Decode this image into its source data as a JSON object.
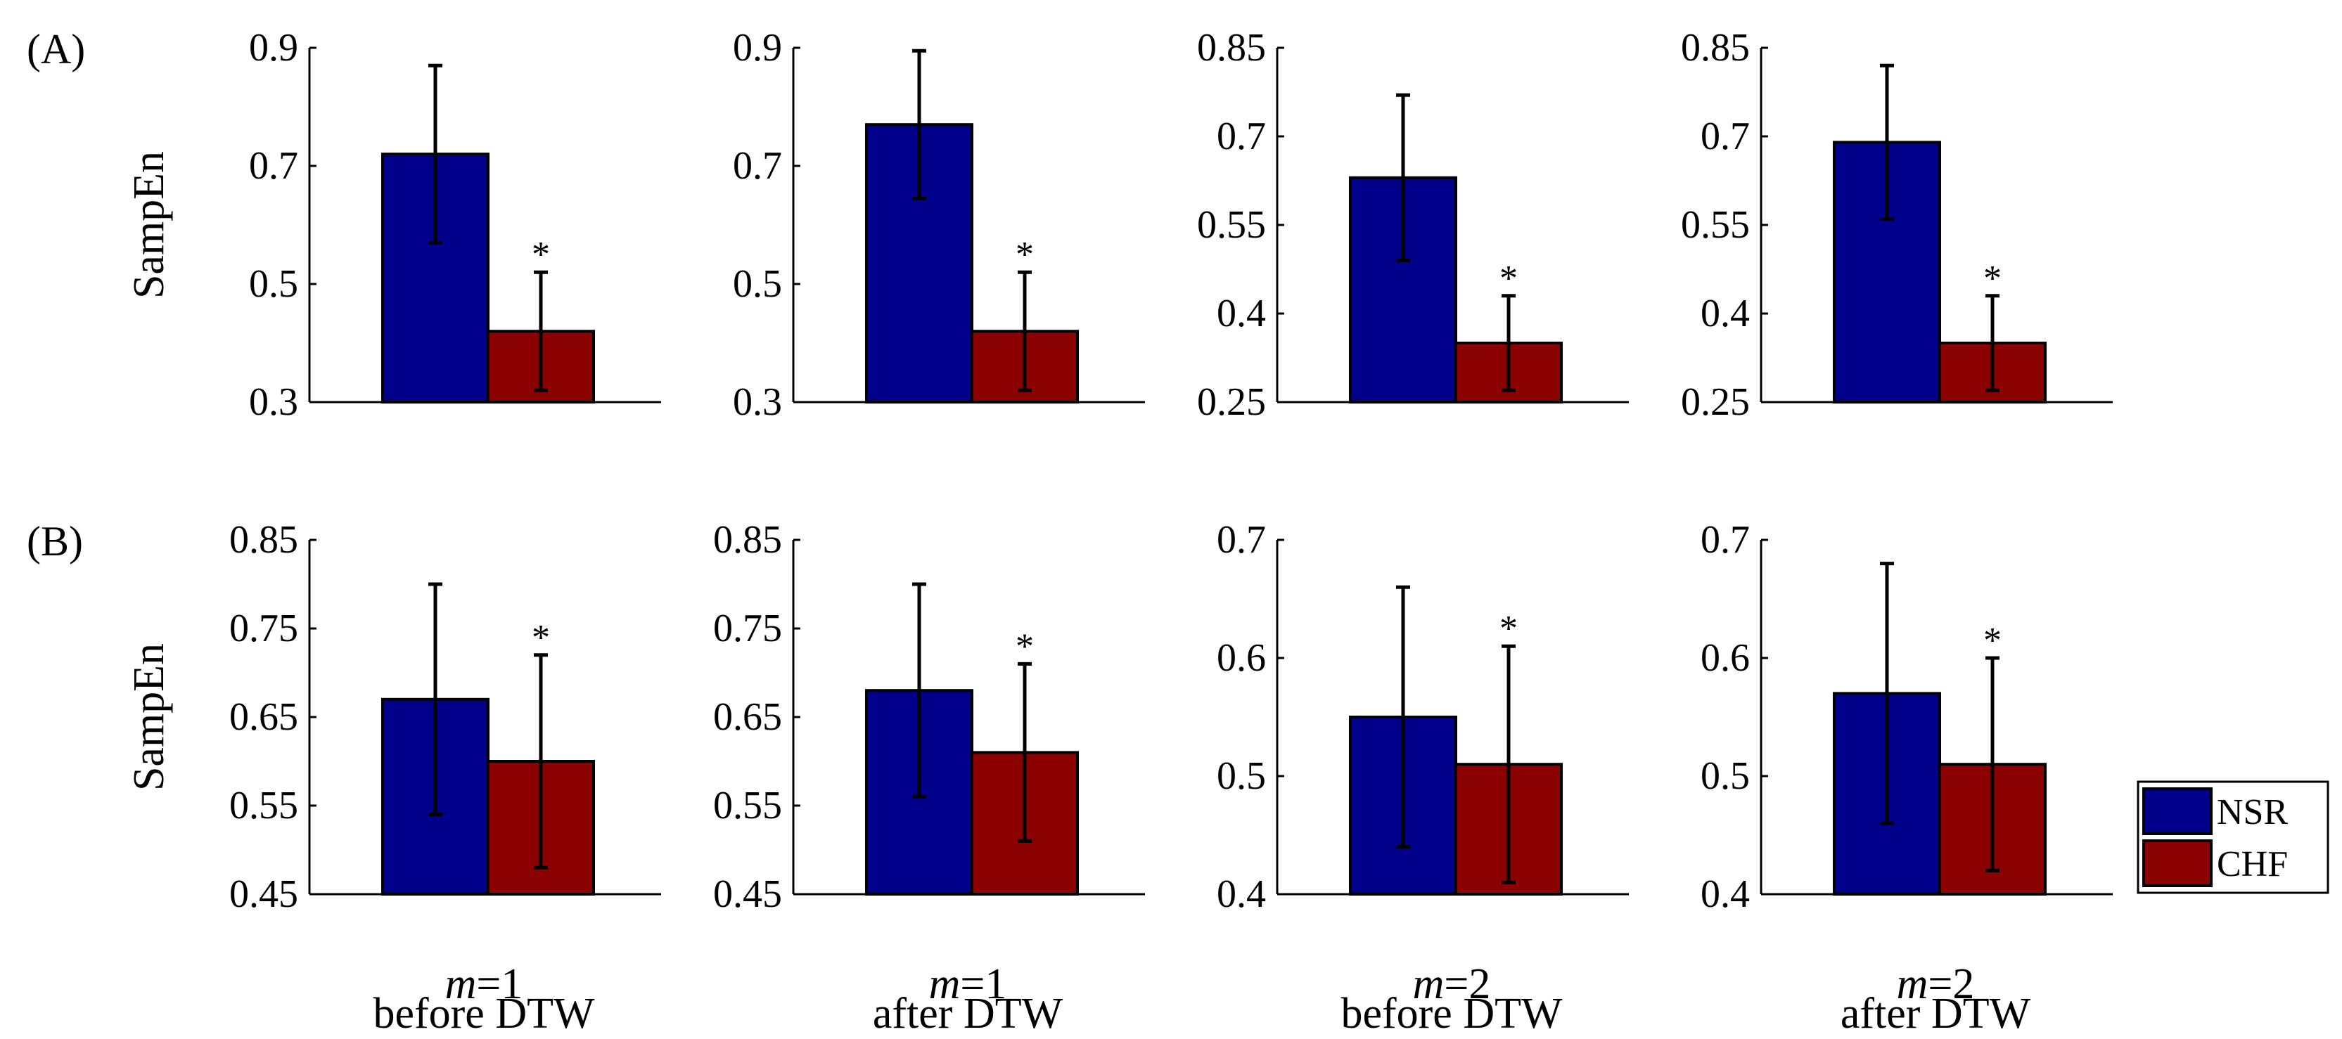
{
  "figure": {
    "panel_labels": [
      "(A)",
      "(B)"
    ],
    "x_labels": [
      {
        "m": "m",
        "eq": "=1",
        "line2": "before DTW"
      },
      {
        "m": "m",
        "eq": "=1",
        "line2": "after DTW"
      },
      {
        "m": "m",
        "eq": "=2",
        "line2": "before DTW"
      },
      {
        "m": "m",
        "eq": "=2",
        "line2": "after DTW"
      }
    ],
    "legend": [
      {
        "name": "NSR",
        "color": "#00008B"
      },
      {
        "name": "CHF",
        "color": "#8B0000"
      }
    ],
    "significance_marker": "*"
  },
  "chart_data": [
    {
      "type": "bar",
      "row": "A",
      "col": 0,
      "ylabel": "SampEn",
      "ylim": [
        0.3,
        0.9
      ],
      "yticks": [
        "0.3",
        "0.5",
        "0.7",
        "0.9"
      ],
      "series": [
        {
          "name": "NSR",
          "value": 0.72,
          "error": 0.15
        },
        {
          "name": "CHF",
          "value": 0.42,
          "error": 0.1
        }
      ],
      "significance": "*"
    },
    {
      "type": "bar",
      "row": "A",
      "col": 1,
      "ylabel": "",
      "ylim": [
        0.3,
        0.9
      ],
      "yticks": [
        "0.3",
        "0.5",
        "0.7",
        "0.9"
      ],
      "series": [
        {
          "name": "NSR",
          "value": 0.77,
          "error": 0.125
        },
        {
          "name": "CHF",
          "value": 0.42,
          "error": 0.1
        }
      ],
      "significance": "*"
    },
    {
      "type": "bar",
      "row": "A",
      "col": 2,
      "ylabel": "",
      "ylim": [
        0.25,
        0.85
      ],
      "yticks": [
        "0.25",
        "0.4",
        "0.55",
        "0.7",
        "0.85"
      ],
      "series": [
        {
          "name": "NSR",
          "value": 0.63,
          "error": 0.14
        },
        {
          "name": "CHF",
          "value": 0.35,
          "error": 0.08
        }
      ],
      "significance": "*"
    },
    {
      "type": "bar",
      "row": "A",
      "col": 3,
      "ylabel": "",
      "ylim": [
        0.25,
        0.85
      ],
      "yticks": [
        "0.25",
        "0.4",
        "0.55",
        "0.7",
        "0.85"
      ],
      "series": [
        {
          "name": "NSR",
          "value": 0.69,
          "error": 0.13
        },
        {
          "name": "CHF",
          "value": 0.35,
          "error": 0.08
        }
      ],
      "significance": "*"
    },
    {
      "type": "bar",
      "row": "B",
      "col": 0,
      "ylabel": "SampEn",
      "ylim": [
        0.45,
        0.85
      ],
      "yticks": [
        "0.45",
        "0.55",
        "0.65",
        "0.75",
        "0.85"
      ],
      "series": [
        {
          "name": "NSR",
          "value": 0.67,
          "error": 0.13
        },
        {
          "name": "CHF",
          "value": 0.6,
          "error": 0.12
        }
      ],
      "significance": "*"
    },
    {
      "type": "bar",
      "row": "B",
      "col": 1,
      "ylabel": "",
      "ylim": [
        0.45,
        0.85
      ],
      "yticks": [
        "0.45",
        "0.55",
        "0.65",
        "0.75",
        "0.85"
      ],
      "series": [
        {
          "name": "NSR",
          "value": 0.68,
          "error": 0.12
        },
        {
          "name": "CHF",
          "value": 0.61,
          "error": 0.1
        }
      ],
      "significance": "*"
    },
    {
      "type": "bar",
      "row": "B",
      "col": 2,
      "ylabel": "",
      "ylim": [
        0.4,
        0.7
      ],
      "yticks": [
        "0.4",
        "0.5",
        "0.6",
        "0.7"
      ],
      "series": [
        {
          "name": "NSR",
          "value": 0.55,
          "error": 0.11
        },
        {
          "name": "CHF",
          "value": 0.51,
          "error": 0.1
        }
      ],
      "significance": "*"
    },
    {
      "type": "bar",
      "row": "B",
      "col": 3,
      "ylabel": "",
      "ylim": [
        0.4,
        0.7
      ],
      "yticks": [
        "0.4",
        "0.5",
        "0.6",
        "0.7"
      ],
      "series": [
        {
          "name": "NSR",
          "value": 0.57,
          "error": 0.11
        },
        {
          "name": "CHF",
          "value": 0.51,
          "error": 0.09
        }
      ],
      "significance": "*"
    }
  ]
}
